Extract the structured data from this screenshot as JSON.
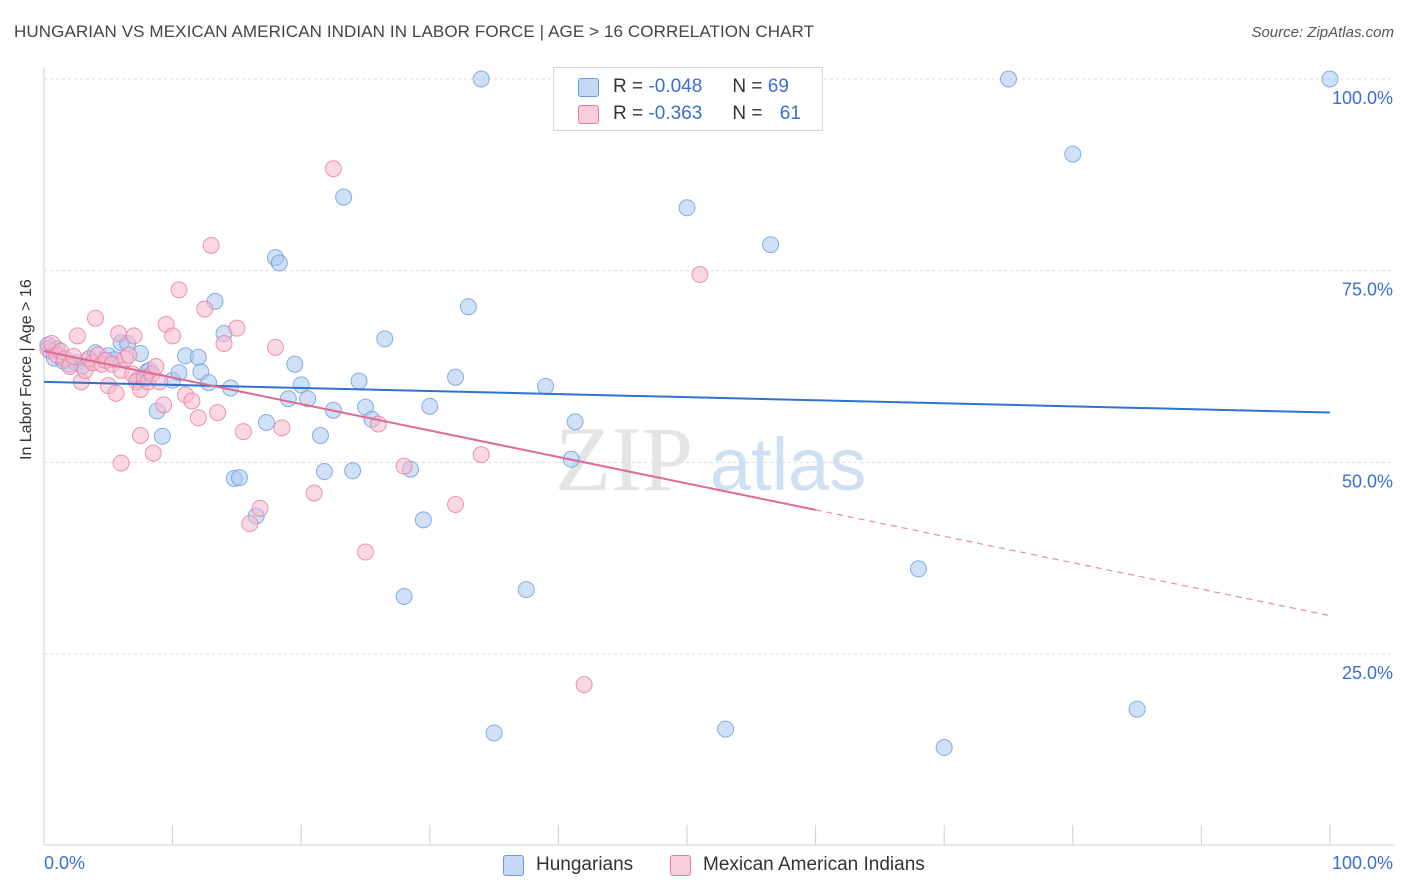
{
  "title": "HUNGARIAN VS MEXICAN AMERICAN INDIAN IN LABOR FORCE | AGE > 16 CORRELATION CHART",
  "source": "Source: ZipAtlas.com",
  "legend": {
    "rows": [
      {
        "r_label": "R =",
        "r_value": "-0.048",
        "n_label": "N =",
        "n_value": "69",
        "color": "#a9c8f0"
      },
      {
        "r_label": "R =",
        "r_value": "-0.363",
        "n_label": "N =",
        "n_value": "61",
        "color": "#f5b8cc"
      }
    ]
  },
  "bottom_legend": [
    "Hungarians",
    "Mexican American Indians"
  ],
  "chart_data": {
    "type": "scatter",
    "title": "HUNGARIAN VS MEXICAN AMERICAN INDIAN IN LABOR FORCE | AGE > 16 CORRELATION CHART",
    "xlabel": "",
    "ylabel": "In Labor Force | Age > 16",
    "xlim": [
      0,
      100
    ],
    "ylim": [
      0,
      105
    ],
    "x_tick_labels": [
      "0.0%",
      "100.0%"
    ],
    "y_ticks": [
      25,
      50,
      75,
      100
    ],
    "y_tick_labels": [
      "25.0%",
      "50.0%",
      "75.0%",
      "100.0%"
    ],
    "grid": true,
    "watermark": "ZIPatlas",
    "series": [
      {
        "name": "Hungarians",
        "color": "#6a9be0",
        "fill": "#a9c8f0",
        "r": -0.048,
        "n": 69,
        "trend": {
          "x0": 0,
          "y0": 60.5,
          "x1": 100,
          "y1": 56.5,
          "solid_until": 100
        },
        "points": [
          [
            0.3,
            65.3
          ],
          [
            0.5,
            64.5
          ],
          [
            0.8,
            63.6
          ],
          [
            1.0,
            64.8
          ],
          [
            1.5,
            63.2
          ],
          [
            2.0,
            62.8
          ],
          [
            2.5,
            63.0
          ],
          [
            3.0,
            62.6
          ],
          [
            3.5,
            63.5
          ],
          [
            4.0,
            64.3
          ],
          [
            5.0,
            63.9
          ],
          [
            5.5,
            63.4
          ],
          [
            6.0,
            65.6
          ],
          [
            6.5,
            65.5
          ],
          [
            7.3,
            60.8
          ],
          [
            7.5,
            64.2
          ],
          [
            8.0,
            61.8
          ],
          [
            8.2,
            62.0
          ],
          [
            8.8,
            56.7
          ],
          [
            9.2,
            53.4
          ],
          [
            10.0,
            60.7
          ],
          [
            10.5,
            61.7
          ],
          [
            11.0,
            63.9
          ],
          [
            12.0,
            63.7
          ],
          [
            12.2,
            61.8
          ],
          [
            12.8,
            60.4
          ],
          [
            13.3,
            71.0
          ],
          [
            14.0,
            66.8
          ],
          [
            14.5,
            59.7
          ],
          [
            14.8,
            47.9
          ],
          [
            15.2,
            48.0
          ],
          [
            16.5,
            43.0
          ],
          [
            17.3,
            55.2
          ],
          [
            18.0,
            76.7
          ],
          [
            18.3,
            76.0
          ],
          [
            19.0,
            58.3
          ],
          [
            19.5,
            62.8
          ],
          [
            20.0,
            60.1
          ],
          [
            20.5,
            58.3
          ],
          [
            21.5,
            53.5
          ],
          [
            21.8,
            48.8
          ],
          [
            22.5,
            56.8
          ],
          [
            23.3,
            84.6
          ],
          [
            24.0,
            48.9
          ],
          [
            24.5,
            60.6
          ],
          [
            25.0,
            57.2
          ],
          [
            25.5,
            55.6
          ],
          [
            26.5,
            66.1
          ],
          [
            28.0,
            32.5
          ],
          [
            28.5,
            49.1
          ],
          [
            29.5,
            42.5
          ],
          [
            30.0,
            57.3
          ],
          [
            32.0,
            61.1
          ],
          [
            33.0,
            70.3
          ],
          [
            34.0,
            100.0
          ],
          [
            35.0,
            14.7
          ],
          [
            37.5,
            33.4
          ],
          [
            39.0,
            59.9
          ],
          [
            41.0,
            50.4
          ],
          [
            41.3,
            55.3
          ],
          [
            50.0,
            83.2
          ],
          [
            53.0,
            15.2
          ],
          [
            56.5,
            78.4
          ],
          [
            68.0,
            36.1
          ],
          [
            70.0,
            12.8
          ],
          [
            75.0,
            100.0
          ],
          [
            80.0,
            90.2
          ],
          [
            85.0,
            17.8
          ],
          [
            100.0,
            100.0
          ]
        ]
      },
      {
        "name": "Mexican American Indians",
        "color": "#e87aa0",
        "fill": "#f5b8cc",
        "r": -0.363,
        "n": 61,
        "trend": {
          "x0": 0,
          "y0": 64.5,
          "x1": 100,
          "y1": 30.0,
          "solid_until": 60
        },
        "points": [
          [
            0.3,
            64.8
          ],
          [
            0.6,
            65.5
          ],
          [
            1.0,
            64.0
          ],
          [
            1.3,
            64.5
          ],
          [
            1.6,
            63.5
          ],
          [
            2.0,
            62.5
          ],
          [
            2.3,
            63.8
          ],
          [
            2.6,
            66.5
          ],
          [
            2.9,
            60.5
          ],
          [
            3.2,
            62.0
          ],
          [
            3.5,
            63.5
          ],
          [
            3.8,
            63.0
          ],
          [
            4.2,
            64.0
          ],
          [
            4.5,
            62.8
          ],
          [
            4.8,
            63.3
          ],
          [
            5.0,
            60.0
          ],
          [
            5.3,
            62.8
          ],
          [
            5.6,
            59.0
          ],
          [
            6.0,
            62.0
          ],
          [
            6.3,
            63.5
          ],
          [
            6.6,
            64.0
          ],
          [
            6.9,
            61.5
          ],
          [
            7.2,
            60.5
          ],
          [
            7.5,
            59.5
          ],
          [
            7.8,
            61.0
          ],
          [
            8.1,
            60.5
          ],
          [
            8.4,
            61.5
          ],
          [
            8.7,
            62.5
          ],
          [
            9.0,
            60.5
          ],
          [
            9.3,
            57.5
          ],
          [
            4.0,
            68.8
          ],
          [
            5.8,
            66.8
          ],
          [
            7.0,
            66.5
          ],
          [
            9.5,
            68.0
          ],
          [
            10.0,
            66.5
          ],
          [
            10.5,
            72.5
          ],
          [
            11.0,
            58.8
          ],
          [
            11.5,
            58.0
          ],
          [
            12.0,
            55.8
          ],
          [
            12.5,
            70.0
          ],
          [
            13.0,
            78.3
          ],
          [
            13.5,
            56.5
          ],
          [
            14.0,
            65.5
          ],
          [
            15.0,
            67.5
          ],
          [
            15.5,
            54.0
          ],
          [
            16.0,
            42.0
          ],
          [
            16.8,
            44.0
          ],
          [
            18.0,
            65.0
          ],
          [
            18.5,
            54.5
          ],
          [
            21.0,
            46.0
          ],
          [
            22.5,
            88.3
          ],
          [
            25.0,
            38.3
          ],
          [
            26.0,
            55.0
          ],
          [
            28.0,
            49.5
          ],
          [
            32.0,
            44.5
          ],
          [
            34.0,
            51.0
          ],
          [
            42.0,
            21.0
          ],
          [
            51.0,
            74.5
          ],
          [
            6.0,
            49.9
          ],
          [
            7.5,
            53.5
          ],
          [
            8.5,
            51.2
          ]
        ]
      }
    ]
  }
}
